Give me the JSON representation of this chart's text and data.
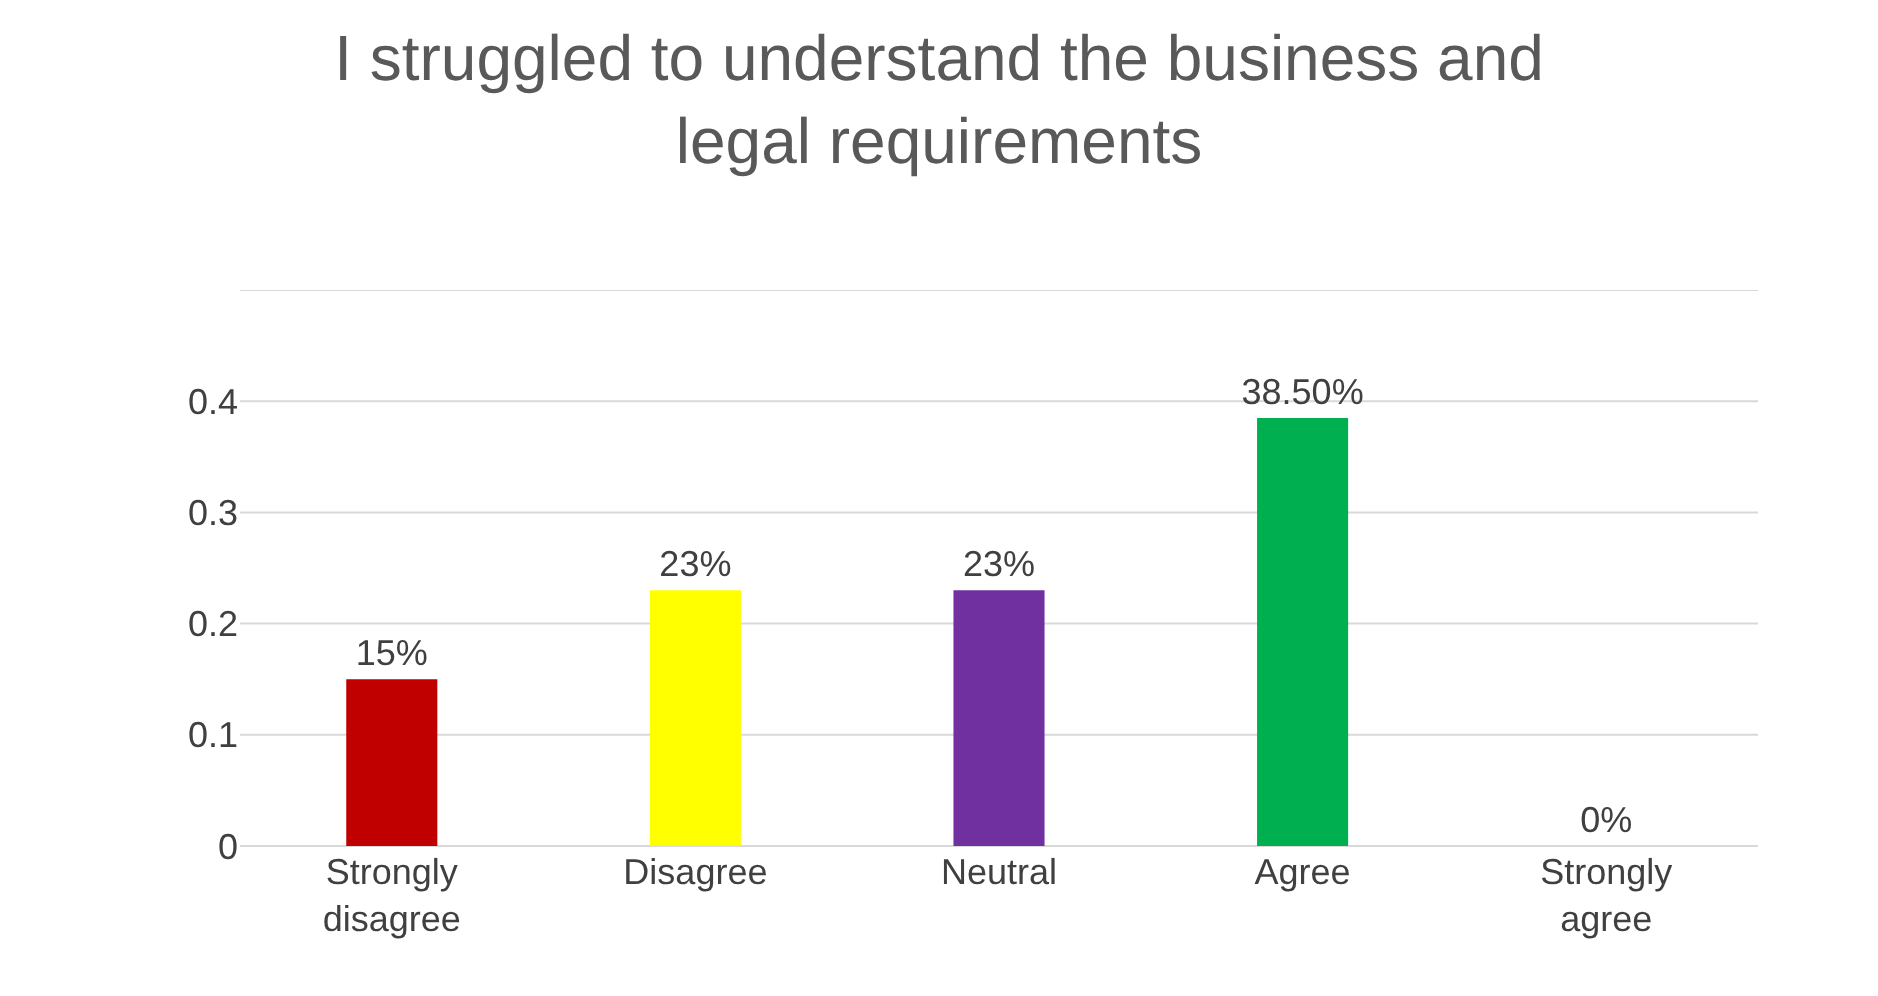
{
  "chart_data": {
    "type": "bar",
    "title": "I struggled to understand the business and legal requirements",
    "categories": [
      "Strongly disagree",
      "Disagree",
      "Neutral",
      "Agree",
      "Strongly agree"
    ],
    "values": [
      0.15,
      0.23,
      0.23,
      0.385,
      0
    ],
    "value_labels": [
      "15%",
      "23%",
      "23%",
      "38.50%",
      "0%"
    ],
    "colors": [
      "#c00000",
      "#ffff00",
      "#7030a0",
      "#00b050",
      "#0070c0"
    ],
    "ylim": [
      0,
      0.5
    ],
    "yticks": [
      0,
      0.1,
      0.2,
      0.3,
      0.4,
      {
        "value": 0.5,
        "label": null
      }
    ],
    "grid": "y",
    "legend": false
  }
}
